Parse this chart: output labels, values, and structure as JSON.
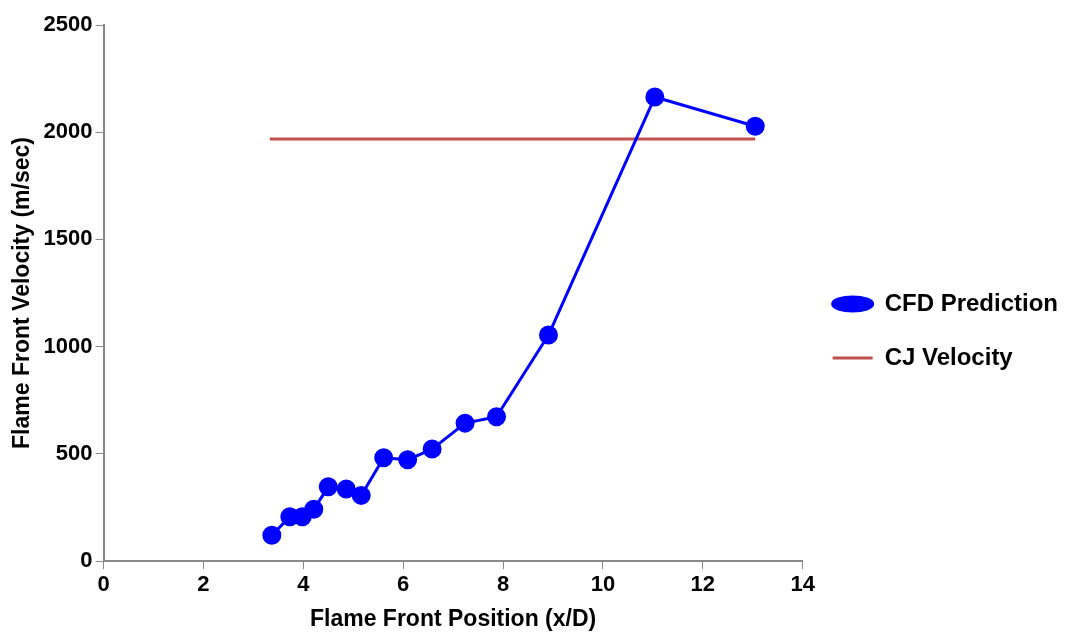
{
  "chart_data": {
    "type": "line",
    "xlabel": "Flame Front Position (x/D)",
    "ylabel": "Flame Front Velocity (m/sec)",
    "xlim": [
      0,
      14
    ],
    "xticks": [
      0,
      2,
      4,
      6,
      8,
      10,
      12,
      14
    ],
    "ylim": [
      0,
      2500
    ],
    "yticks": [
      0,
      500,
      1000,
      1500,
      2000,
      2500
    ],
    "grid": false,
    "legend": "right",
    "series": [
      {
        "name": "CFD Prediction",
        "color": "#0000ff",
        "marker": "circle",
        "x": [
          3.37,
          3.73,
          3.98,
          4.21,
          4.5,
          4.86,
          5.16,
          5.61,
          6.09,
          6.58,
          7.24,
          7.87,
          8.91,
          11.04,
          13.05
        ],
        "values": [
          120,
          206,
          206,
          241,
          346,
          336,
          306,
          482,
          472,
          522,
          643,
          673,
          1054,
          2164,
          2028
        ]
      },
      {
        "name": "CJ Velocity",
        "color": "#c0504d",
        "marker": "none",
        "x": [
          3.33,
          13.05
        ],
        "values": [
          1968,
          1968
        ]
      }
    ]
  }
}
